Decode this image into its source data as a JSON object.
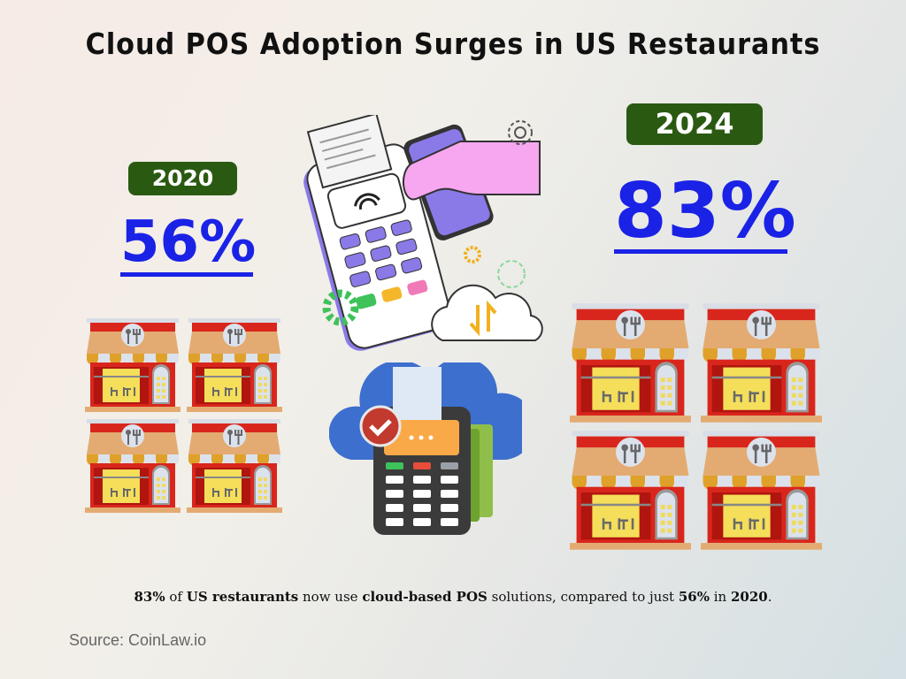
{
  "title": "Cloud POS Adoption Surges in US Restaurants",
  "left": {
    "year": "2020",
    "percent": "56%",
    "restaurant_icons": 4
  },
  "right": {
    "year": "2024",
    "percent": "83%",
    "restaurant_icons": 4
  },
  "caption": {
    "p1": "83%",
    "p2": " of ",
    "p3": "US restaurants",
    "p4": " now use ",
    "p5": "cloud-based POS",
    "p6": " solutions, compared to just ",
    "p7": "56%",
    "p8": " in ",
    "p9": "2020",
    "p10": "."
  },
  "source": "Source: CoinLaw.io",
  "colors": {
    "badge": "#2a5a12",
    "percent": "#1a22e6"
  },
  "icons": [
    "restaurant-storefront-icon",
    "pos-terminal-icon",
    "smartphone-payment-icon",
    "gear-icon",
    "cloud-sync-icon",
    "cloud-pos-icon",
    "checkmark-icon"
  ]
}
